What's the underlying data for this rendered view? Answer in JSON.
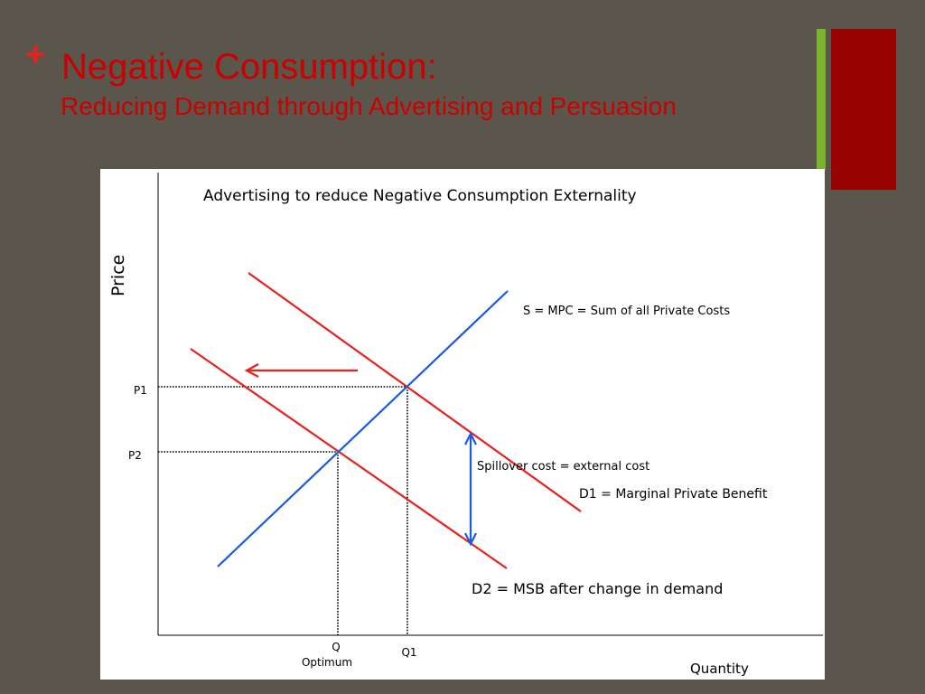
{
  "slide": {
    "plus_symbol": "+",
    "title": "Negative Consumption:",
    "subtitle": "Reducing Demand through Advertising and Persuasion"
  },
  "colors": {
    "background": "#5a564b",
    "title": "#cc0000",
    "plus": "#e8211d",
    "accent_green": "#7ab32e",
    "accent_red": "#990000",
    "demand_lines": "#e8211d",
    "supply_line": "#1a5ae0",
    "spillover_arrow": "#1a5ae0",
    "shift_arrow": "#e8211d"
  },
  "diagram": {
    "title": "Advertising to reduce Negative Consumption Externality",
    "y_axis_label": "Price",
    "x_axis_label": "Quantity",
    "supply_label": "S = MPC = Sum of all Private Costs",
    "d1_label": "D1 = Marginal Private Benefit",
    "d2_label": "D2 = MSB after change in demand",
    "spillover_label": "Spillover cost = external cost",
    "p1_label": "P1",
    "p2_label": "P2",
    "q_label": "Q",
    "optimum_label": "Optimum",
    "q1_label": "Q1",
    "shift_direction_icon": "left-arrow-icon"
  }
}
